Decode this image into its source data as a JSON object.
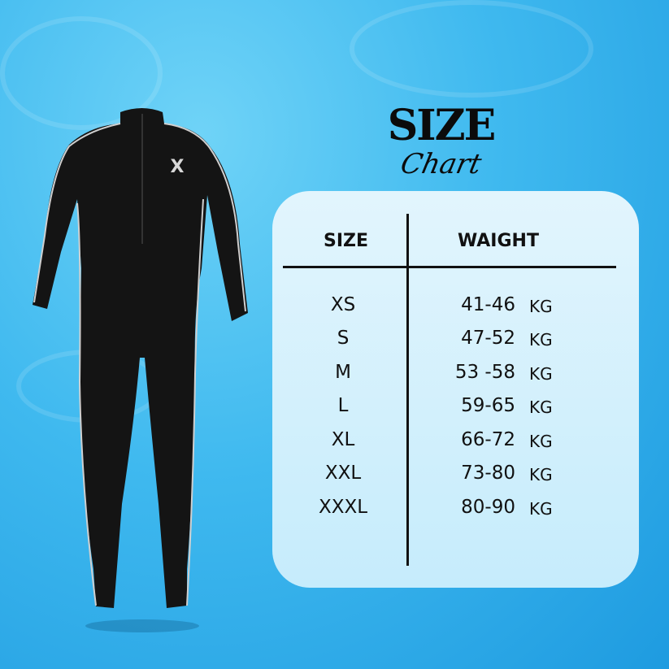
{
  "title": {
    "line1": "SIZE",
    "line2": "Chart"
  },
  "table": {
    "headers": {
      "size": "SIZE",
      "weight": "WAIGHT"
    },
    "unit": "KG",
    "rows": [
      {
        "size": "XS",
        "weight": "41-46"
      },
      {
        "size": "S",
        "weight": "47-52"
      },
      {
        "size": "M",
        "weight": "53 -58"
      },
      {
        "size": "L",
        "weight": "59-65"
      },
      {
        "size": "XL",
        "weight": "66-72"
      },
      {
        "size": "XXL",
        "weight": "73-80"
      },
      {
        "size": "XXXL",
        "weight": "80-90"
      }
    ]
  },
  "product": {
    "logo_text": "X"
  },
  "colors": {
    "background": "#3fb9ef",
    "panel": "#d4f0fc",
    "text": "#111111",
    "suit": "#141414",
    "piping": "#cfcfcf"
  }
}
